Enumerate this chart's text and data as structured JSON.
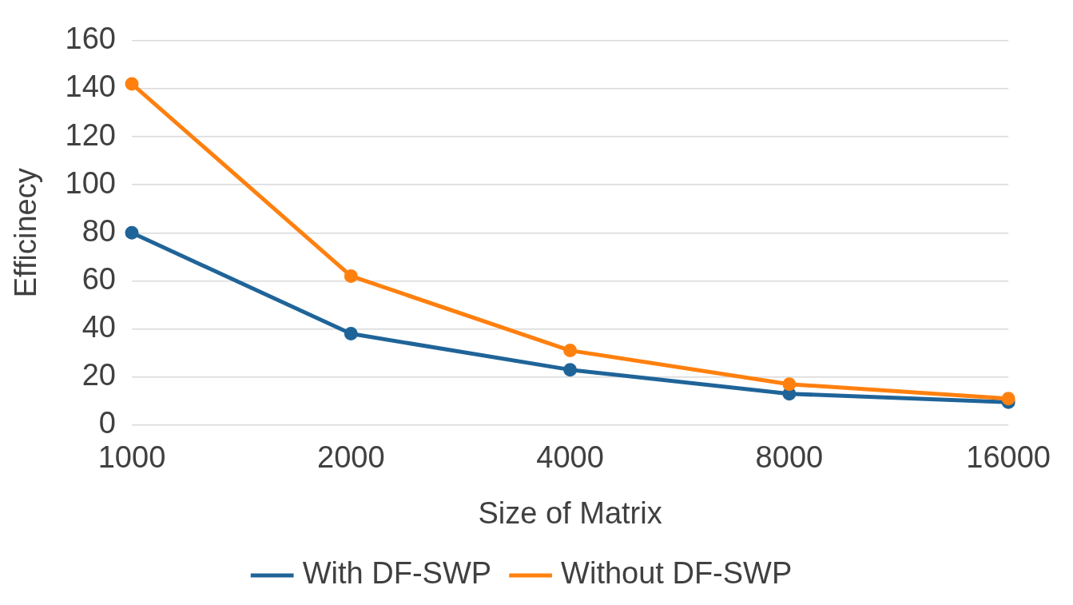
{
  "chart_data": {
    "type": "line",
    "xlabel": "Size of Matrix",
    "ylabel": "Efficinecy",
    "categories": [
      "1000",
      "2000",
      "4000",
      "8000",
      "16000"
    ],
    "series": [
      {
        "name": "With DF-SWP",
        "color": "#1f6499",
        "values": [
          80,
          38,
          23,
          13,
          9.5
        ]
      },
      {
        "name": "Without DF-SWP",
        "color": "#ff800e",
        "values": [
          142,
          62,
          31,
          17,
          11
        ]
      }
    ],
    "ylim": [
      0,
      160
    ],
    "yticks": [
      0,
      20,
      40,
      60,
      80,
      100,
      120,
      140,
      160
    ],
    "grid": "y",
    "legend": "bottom",
    "marker": "circle",
    "line_style": "solid"
  }
}
